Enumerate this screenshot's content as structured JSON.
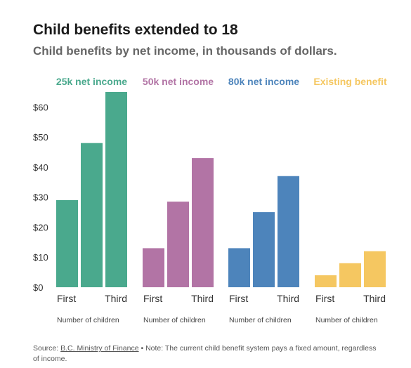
{
  "title": "Child benefits extended to 18",
  "subtitle": "Child benefits by net income, in thousands of dollars.",
  "chart_data": {
    "type": "bar",
    "y_ticks": [
      "$0",
      "$10",
      "$20",
      "$30",
      "$40",
      "$50",
      "$60"
    ],
    "ylim": [
      0,
      65
    ],
    "grid": false,
    "categories": [
      "First",
      "",
      "Third"
    ],
    "xlabel": "Number of children",
    "series": [
      {
        "name": "25k net income",
        "color": "#4aa98d",
        "values": [
          29,
          48,
          65
        ]
      },
      {
        "name": "50k net income",
        "color": "#b274a5",
        "values": [
          13,
          28.5,
          43
        ]
      },
      {
        "name": "80k net income",
        "color": "#4d84bb",
        "values": [
          13,
          25,
          37
        ]
      },
      {
        "name": "Existing benefit",
        "color": "#f5c761",
        "values": [
          4,
          8,
          12
        ]
      }
    ]
  },
  "source": {
    "prefix": "Source: ",
    "link_text": "B.C. Ministry of Finance",
    "note": " • Note: The current child benefit system pays a fixed amount, regardless of income."
  }
}
